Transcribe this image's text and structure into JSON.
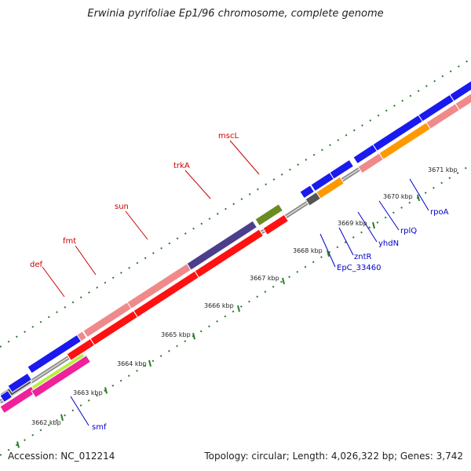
{
  "title": "Erwinia pyrifoliae Ep1/96 chromosome, complete genome",
  "accession_text": "Accession: NC_012214",
  "topology_text": "Topology: circular; Length: 4,026,322 bp; Genes: 3,742",
  "axis_labels": [
    "3662 kbp",
    "3663 kbp",
    "3664 kbp",
    "3665 kbp",
    "3666 kbp",
    "3667 kbp",
    "3668 kbp",
    "3669 kbp",
    "3670 kbp",
    "3671 kbp"
  ],
  "gene_labels_forward": [
    "def",
    "fmt",
    "sun",
    "trkA",
    "mscL"
  ],
  "gene_labels_reverse": [
    "smf",
    "EpC_33460",
    "zntR",
    "yhdN",
    "rplQ",
    "rpoA"
  ],
  "colors": {
    "forward_label": "#cc0000",
    "reverse_label": "#0000cc",
    "red": "#ff1111",
    "pink": "#f08a8a",
    "blue": "#1a1aee",
    "orange": "#ff9900",
    "purple": "#4b3f8c",
    "olive": "#6b8c22",
    "gray": "#555555",
    "magenta": "#ee2299",
    "lime": "#bbee44",
    "tick": "#2a7a2a",
    "backbone": "#888888"
  }
}
